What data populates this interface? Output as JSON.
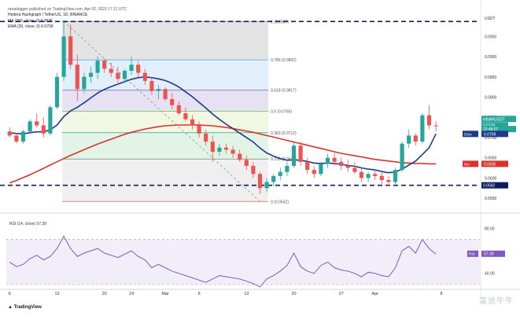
{
  "header": {
    "published": "ranadagger published on TradingView.com, Apr 02, 2023 17:11 UTC",
    "title": "Hedera Hashgraph / TetherUS, 1D, BINANCE",
    "ma_line": "MA (200, close, 0)  0.0635",
    "ema_line": "EMA (20, close, 0)  0.0709"
  },
  "footer": {
    "brand": "TradingView",
    "watermark": "富途牛牛"
  },
  "colors": {
    "up": "#26a69a",
    "down": "#ef5350",
    "ema": "#1e3a8a",
    "ma": "#d9342b",
    "rsi": "#7e57c2",
    "support": "#0d1b5e"
  },
  "chart_data": [
    {
      "type": "candlestick",
      "title": "Hedera Hashgraph / TetherUS, 1D, BINANCE",
      "ylabel": "USDT",
      "ylim": [
        0.0525,
        0.1005
      ],
      "x_ticks": [
        "6",
        "13",
        "20",
        "24",
        "Mar",
        "6",
        "13",
        "20",
        "27",
        "Apr",
        "8"
      ],
      "y_ticks": [
        0.055,
        0.06,
        0.065,
        0.07,
        0.075,
        0.08,
        0.085,
        0.09,
        0.095
      ],
      "candles": [
        [
          0.0715,
          0.0725,
          0.07,
          0.0705
        ],
        [
          0.0705,
          0.0712,
          0.0685,
          0.069
        ],
        [
          0.069,
          0.072,
          0.0685,
          0.0715
        ],
        [
          0.0715,
          0.0745,
          0.071,
          0.074
        ],
        [
          0.074,
          0.076,
          0.0725,
          0.073
        ],
        [
          0.073,
          0.075,
          0.07,
          0.071
        ],
        [
          0.071,
          0.078,
          0.0705,
          0.0775
        ],
        [
          0.0775,
          0.086,
          0.077,
          0.085
        ],
        [
          0.085,
          0.099,
          0.084,
          0.095
        ],
        [
          0.095,
          0.098,
          0.087,
          0.088
        ],
        [
          0.088,
          0.0905,
          0.079,
          0.082
        ],
        [
          0.082,
          0.086,
          0.081,
          0.085
        ],
        [
          0.085,
          0.0875,
          0.0835,
          0.086
        ],
        [
          0.086,
          0.09,
          0.0845,
          0.089
        ],
        [
          0.089,
          0.0895,
          0.086,
          0.087
        ],
        [
          0.087,
          0.0885,
          0.085,
          0.086
        ],
        [
          0.086,
          0.0875,
          0.083,
          0.0845
        ],
        [
          0.0845,
          0.087,
          0.0835,
          0.0865
        ],
        [
          0.0865,
          0.09,
          0.0855,
          0.088
        ],
        [
          0.088,
          0.089,
          0.085,
          0.086
        ],
        [
          0.086,
          0.087,
          0.083,
          0.084
        ],
        [
          0.084,
          0.085,
          0.0805,
          0.0815
        ],
        [
          0.0815,
          0.083,
          0.0795,
          0.082
        ],
        [
          0.082,
          0.0825,
          0.079,
          0.0795
        ],
        [
          0.0795,
          0.081,
          0.077,
          0.078
        ],
        [
          0.078,
          0.079,
          0.0755,
          0.076
        ],
        [
          0.076,
          0.0775,
          0.074,
          0.0745
        ],
        [
          0.0745,
          0.0755,
          0.072,
          0.073
        ],
        [
          0.073,
          0.074,
          0.07,
          0.071
        ],
        [
          0.071,
          0.072,
          0.068,
          0.069
        ],
        [
          0.069,
          0.0705,
          0.064,
          0.0665
        ],
        [
          0.0665,
          0.0685,
          0.0655,
          0.0675
        ],
        [
          0.0675,
          0.0685,
          0.066,
          0.067
        ],
        [
          0.067,
          0.068,
          0.065,
          0.066
        ],
        [
          0.066,
          0.067,
          0.064,
          0.0645
        ],
        [
          0.0645,
          0.0655,
          0.062,
          0.063
        ],
        [
          0.063,
          0.064,
          0.06,
          0.061
        ],
        [
          0.061,
          0.0615,
          0.056,
          0.0575
        ],
        [
          0.0575,
          0.06,
          0.0565,
          0.059
        ],
        [
          0.059,
          0.061,
          0.058,
          0.0605
        ],
        [
          0.0605,
          0.0625,
          0.0595,
          0.0615
        ],
        [
          0.0615,
          0.064,
          0.0605,
          0.063
        ],
        [
          0.063,
          0.069,
          0.0625,
          0.068
        ],
        [
          0.068,
          0.069,
          0.063,
          0.064
        ],
        [
          0.064,
          0.065,
          0.061,
          0.062
        ],
        [
          0.062,
          0.063,
          0.06,
          0.061
        ],
        [
          0.061,
          0.064,
          0.0605,
          0.0635
        ],
        [
          0.0635,
          0.066,
          0.0625,
          0.065
        ],
        [
          0.065,
          0.0665,
          0.063,
          0.064
        ],
        [
          0.064,
          0.065,
          0.062,
          0.063
        ],
        [
          0.063,
          0.0645,
          0.0615,
          0.0625
        ],
        [
          0.0625,
          0.064,
          0.061,
          0.0615
        ],
        [
          0.0615,
          0.0625,
          0.059,
          0.06
        ],
        [
          0.06,
          0.0615,
          0.059,
          0.061
        ],
        [
          0.061,
          0.062,
          0.0595,
          0.0605
        ],
        [
          0.0605,
          0.0615,
          0.0585,
          0.0595
        ],
        [
          0.0595,
          0.0605,
          0.058,
          0.059
        ],
        [
          0.059,
          0.0625,
          0.0585,
          0.062
        ],
        [
          0.062,
          0.069,
          0.0615,
          0.0685
        ],
        [
          0.0685,
          0.072,
          0.0675,
          0.0705
        ],
        [
          0.0705,
          0.071,
          0.068,
          0.069
        ],
        [
          0.069,
          0.076,
          0.0685,
          0.0755
        ],
        [
          0.0755,
          0.078,
          0.072,
          0.073
        ],
        [
          0.073,
          0.074,
          0.0715,
          0.0729
        ]
      ],
      "ema20": [
        0.0712,
        0.071,
        0.0709,
        0.0712,
        0.0714,
        0.0714,
        0.0719,
        0.0731,
        0.0752,
        0.0766,
        0.0775,
        0.0786,
        0.0798,
        0.081,
        0.0819,
        0.0826,
        0.0832,
        0.0838,
        0.0844,
        0.0848,
        0.085,
        0.0848,
        0.0845,
        0.0841,
        0.0834,
        0.0825,
        0.0813,
        0.0801,
        0.0787,
        0.0773,
        0.0758,
        0.0745,
        0.0733,
        0.0722,
        0.0711,
        0.07,
        0.0689,
        0.0674,
        0.0662,
        0.0654,
        0.0648,
        0.0644,
        0.0645,
        0.0644,
        0.0641,
        0.0637,
        0.0636,
        0.0637,
        0.0636,
        0.0634,
        0.0631,
        0.0629,
        0.0625,
        0.0622,
        0.062,
        0.0616,
        0.0613,
        0.0615,
        0.0622,
        0.0632,
        0.0642,
        0.0658,
        0.0675,
        0.0709
      ],
      "ma200": [
        0.0588,
        0.0594,
        0.0601,
        0.0608,
        0.0616,
        0.0624,
        0.0632,
        0.064,
        0.0648,
        0.0656,
        0.0663,
        0.067,
        0.0677,
        0.0684,
        0.069,
        0.0696,
        0.0702,
        0.0708,
        0.0713,
        0.0717,
        0.0721,
        0.0724,
        0.0727,
        0.0729,
        0.073,
        0.0731,
        0.0731,
        0.0731,
        0.0731,
        0.073,
        0.0729,
        0.0727,
        0.0725,
        0.0722,
        0.0719,
        0.0716,
        0.0713,
        0.0709,
        0.0705,
        0.0701,
        0.0697,
        0.0693,
        0.0689,
        0.0685,
        0.0681,
        0.0677,
        0.0673,
        0.0669,
        0.0665,
        0.0661,
        0.0658,
        0.0655,
        0.0652,
        0.0649,
        0.0646,
        0.0644,
        0.0642,
        0.064,
        0.0638,
        0.0637,
        0.0636,
        0.0636,
        0.0635,
        0.0635
      ],
      "fib_levels": [
        {
          "label": "1 (0.0987)",
          "value": 0.0987
        },
        {
          "label": "0.786 (0.0892)",
          "value": 0.0892
        },
        {
          "label": "0.618 (0.0817)",
          "value": 0.0817
        },
        {
          "label": "0.5 (0.0765)",
          "value": 0.0765
        },
        {
          "label": "0.382 (0.0712)",
          "value": 0.0712
        },
        {
          "label": "0.236 (0.0647)",
          "value": 0.0647
        },
        {
          "label": "0 (0.0542)",
          "value": 0.0542
        }
      ],
      "support_levels": [
        0.0582,
        0.0987
      ],
      "price_labels": [
        {
          "text": "HBARUSDT",
          "value": 0.0746,
          "color": "#26a69a"
        },
        {
          "text": "0.0729",
          "value": 0.073,
          "color": "#26a69a"
        },
        {
          "text": "22:48:07",
          "value": 0.0721,
          "color": "#26a69a"
        },
        {
          "text": "EMA",
          "value": 0.0709,
          "color": "#1e3a8a",
          "value_text": "0.0709"
        },
        {
          "text": "MA",
          "value": 0.0635,
          "color": "#d9342b",
          "value_text": "0.0635"
        },
        {
          "text": "0.0582",
          "value": 0.0582,
          "color": "#0d1b5e"
        }
      ]
    },
    {
      "type": "line",
      "title": "RSI (14, close)  57.39",
      "ylim": [
        30,
        90
      ],
      "y_ticks": [
        40,
        80
      ],
      "band": [
        30,
        70
      ],
      "current": 57.39,
      "values": [
        50,
        46,
        48,
        53,
        56,
        52,
        55,
        62,
        73,
        62,
        55,
        58,
        60,
        62,
        58,
        56,
        54,
        57,
        60,
        55,
        52,
        45,
        48,
        45,
        42,
        40,
        38,
        36,
        34,
        32,
        35,
        38,
        37,
        36,
        35,
        33,
        31,
        28,
        35,
        38,
        42,
        47,
        58,
        46,
        42,
        40,
        47,
        50,
        45,
        43,
        42,
        40,
        37,
        41,
        40,
        38,
        37,
        45,
        60,
        64,
        58,
        70,
        62,
        57
      ]
    }
  ]
}
